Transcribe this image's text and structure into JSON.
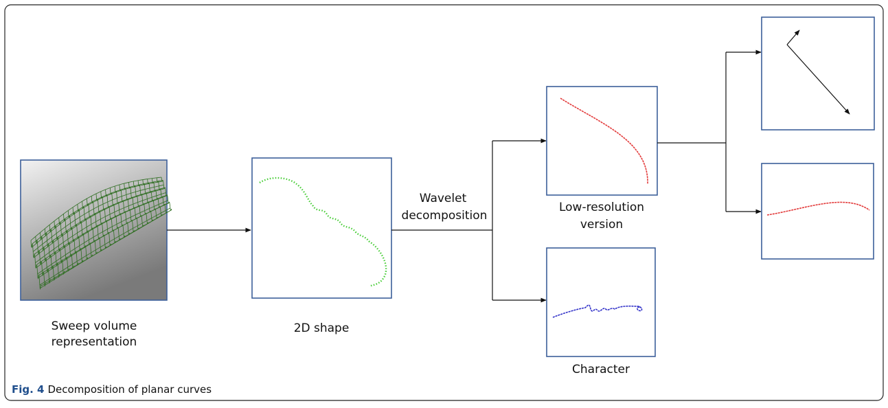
{
  "nodes": [
    {
      "label": [
        "Sweep volume",
        "representation"
      ]
    },
    {
      "label": [
        "2D shape"
      ]
    },
    {
      "label": [
        "Low-resolution",
        "version"
      ]
    },
    {
      "label": [
        "Character"
      ]
    }
  ],
  "edges": [
    {
      "label": [
        "Wavelet",
        "decomposition"
      ]
    }
  ],
  "caption": {
    "number": "Fig. 4",
    "text": "Decomposition of planar curves"
  }
}
